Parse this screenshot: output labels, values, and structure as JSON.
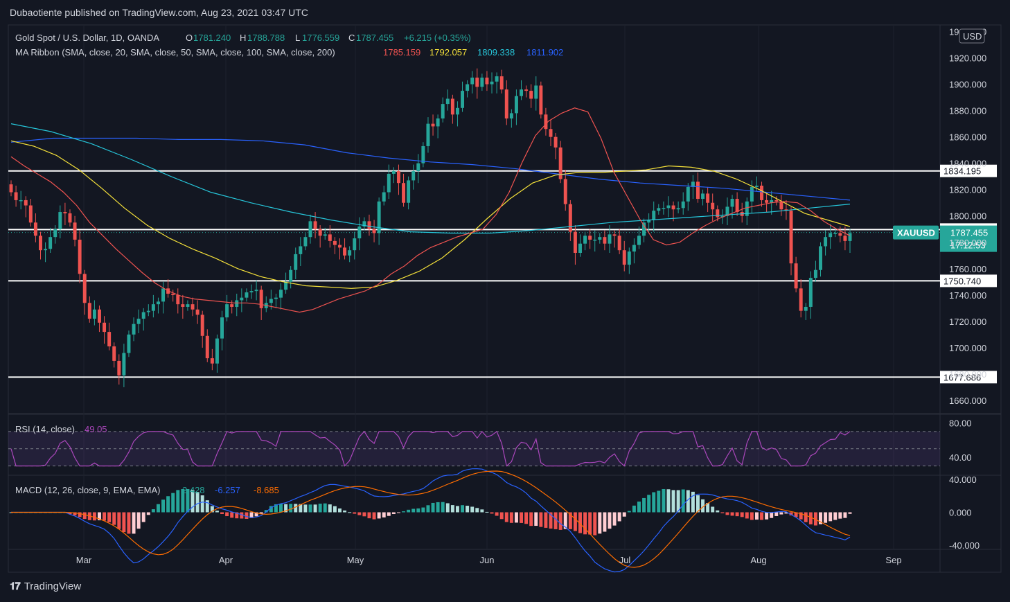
{
  "header": {
    "published": "Dubaotiente published on TradingView.com, Aug 23, 2021 03:47 UTC"
  },
  "footer": {
    "brand": "TradingView",
    "logo": "tv-logo-icon"
  },
  "colors": {
    "bg": "#131722",
    "up": "#26a69a",
    "down": "#ef5350",
    "sma20": "#ef5350",
    "sma50": "#f5e13a",
    "sma100": "#26c6da",
    "sma200": "#2962ff",
    "rsi": "#ab47bc",
    "macd": "#2962ff",
    "signal": "#ff6d00",
    "currency_badge": "#26a69a"
  },
  "legend": {
    "symbol": "Gold Spot / U.S. Dollar, 1D, OANDA",
    "o_label": "O",
    "o": "1781.240",
    "h_label": "H",
    "h": "1788.788",
    "l_label": "L",
    "l": "1776.559",
    "c_label": "C",
    "c": "1787.455",
    "change": "+6.215 (+0.35%)",
    "ma_title": "MA Ribbon (SMA, close, 20, SMA, close, 50, SMA, close, 100, SMA, close, 200)",
    "ma20": "1785.159",
    "ma50": "1792.057",
    "ma100": "1809.338",
    "ma200": "1811.902",
    "rsi_title": "RSI (14, close)",
    "rsi_value": "49.05",
    "macd_title": "MACD (12, 26, close, 9, EMA, EMA)",
    "macd_hist": "2.428",
    "macd_line": "-6.257",
    "macd_signal": "-8.685"
  },
  "price_axis": {
    "currency": "USD",
    "ticks": [
      "1940.000",
      "1920.000",
      "1900.000",
      "1880.000",
      "1860.000",
      "1840.000",
      "1820.000",
      "1800.000",
      "1780.000",
      "1760.000",
      "1740.000",
      "1720.000",
      "1700.000",
      "1680.000",
      "1660.000"
    ],
    "level_labels": [
      "1834.195",
      "1789.690",
      "1750.740",
      "1677.686"
    ],
    "last_symbol": "XAUUSD",
    "last_price": "1787.455",
    "countdown": "17:12:53"
  },
  "rsi_axis": {
    "ticks": [
      "80.00",
      "40.00"
    ]
  },
  "macd_axis": {
    "ticks": [
      "40.000",
      "0.000",
      "-40.000"
    ]
  },
  "time_axis": {
    "labels": [
      "Mar",
      "Apr",
      "May",
      "Jun",
      "Jul",
      "Aug",
      "Sep"
    ]
  },
  "chart_data": {
    "type": "candlestick",
    "symbol": "XAUUSD",
    "interval": "1D",
    "y_range": [
      1650,
      1945
    ],
    "horizontal_levels": [
      1834.195,
      1789.69,
      1750.74,
      1677.686
    ],
    "last_close": 1787.455,
    "candles_close": [
      1818,
      1812,
      1812,
      1808,
      1795,
      1785,
      1774,
      1775,
      1784,
      1790,
      1803,
      1802,
      1795,
      1782,
      1756,
      1734,
      1722,
      1729,
      1719,
      1712,
      1701,
      1690,
      1679,
      1696,
      1710,
      1718,
      1722,
      1727,
      1728,
      1733,
      1735,
      1745,
      1741,
      1740,
      1733,
      1731,
      1733,
      1729,
      1725,
      1709,
      1692,
      1688,
      1707,
      1723,
      1733,
      1731,
      1736,
      1738,
      1742,
      1743,
      1744,
      1730,
      1734,
      1737,
      1738,
      1744,
      1750,
      1759,
      1771,
      1777,
      1784,
      1796,
      1790,
      1785,
      1786,
      1781,
      1778,
      1776,
      1770,
      1774,
      1783,
      1792,
      1796,
      1790,
      1787,
      1811,
      1818,
      1832,
      1834,
      1825,
      1810,
      1827,
      1834,
      1840,
      1853,
      1870,
      1868,
      1874,
      1885,
      1889,
      1877,
      1882,
      1895,
      1900,
      1905,
      1898,
      1905,
      1900,
      1902,
      1906,
      1896,
      1874,
      1878,
      1891,
      1896,
      1895,
      1889,
      1899,
      1877,
      1866,
      1860,
      1852,
      1828,
      1809,
      1788,
      1772,
      1779,
      1785,
      1782,
      1782,
      1784,
      1779,
      1786,
      1785,
      1774,
      1763,
      1773,
      1778,
      1785,
      1795,
      1797,
      1804,
      1806,
      1806,
      1808,
      1805,
      1806,
      1811,
      1822,
      1826,
      1813,
      1817,
      1810,
      1805,
      1799,
      1800,
      1807,
      1813,
      1803,
      1800,
      1811,
      1822,
      1823,
      1812,
      1810,
      1812,
      1811,
      1805,
      1804,
      1764,
      1745,
      1728,
      1731,
      1753,
      1759,
      1777,
      1784,
      1787,
      1787,
      1785,
      1781,
      1787
    ],
    "sma20": [
      1845,
      1838,
      1832,
      1826,
      1818,
      1808,
      1795,
      1785,
      1775,
      1766,
      1757,
      1749,
      1743,
      1739,
      1737,
      1736,
      1735,
      1734,
      1734,
      1733,
      1731,
      1729,
      1727,
      1729,
      1733,
      1737,
      1740,
      1743,
      1748,
      1756,
      1762,
      1770,
      1776,
      1780,
      1784,
      1787,
      1790,
      1801,
      1818,
      1841,
      1861,
      1872,
      1878,
      1882,
      1879,
      1859,
      1833,
      1815,
      1797,
      1782,
      1778,
      1780,
      1787,
      1793,
      1798,
      1802,
      1806,
      1808,
      1810,
      1811,
      1810,
      1804,
      1796,
      1790,
      1785
    ],
    "sma50": [
      1857,
      1853,
      1846,
      1835,
      1821,
      1806,
      1793,
      1783,
      1775,
      1768,
      1760,
      1754,
      1750,
      1747,
      1746,
      1745,
      1746,
      1751,
      1758,
      1768,
      1782,
      1798,
      1813,
      1825,
      1831,
      1833,
      1833,
      1834,
      1835,
      1838,
      1837,
      1834,
      1828,
      1820,
      1811,
      1802,
      1797,
      1792
    ],
    "sma100": [
      1870,
      1864,
      1855,
      1843,
      1830,
      1818,
      1810,
      1803,
      1797,
      1792,
      1788,
      1787,
      1787,
      1789,
      1792,
      1795,
      1797,
      1799,
      1801,
      1803,
      1806,
      1809
    ],
    "sma200": [
      1856,
      1859,
      1859,
      1859,
      1858,
      1858,
      1857,
      1854,
      1848,
      1844,
      1841,
      1839,
      1836,
      1832,
      1828,
      1825,
      1823,
      1821,
      1818,
      1815,
      1812
    ],
    "rsi": {
      "range": [
        20,
        90
      ],
      "overbought": 70,
      "oversold": 30,
      "last": 49.05
    },
    "macd": {
      "range": [
        -45,
        45
      ],
      "last_hist": 2.428,
      "last_macd": -6.257,
      "last_signal": -8.685
    }
  }
}
